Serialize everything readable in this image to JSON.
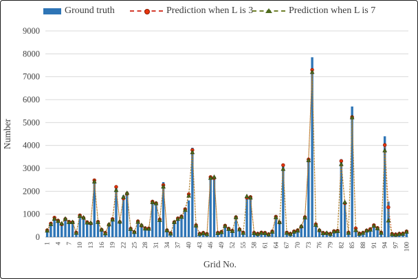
{
  "legend": {
    "items": [
      {
        "label": "Ground truth",
        "swatch": "bar-blue"
      },
      {
        "label": "Prediction when L is 3",
        "swatch": "red-dashed-dot"
      },
      {
        "label": "Prediction when L is 7",
        "swatch": "green-dashed-triangle"
      }
    ]
  },
  "colors": {
    "bar": "#2E75B6",
    "pred_l3_line": "#CE5A28",
    "pred_l3_marker": "#E8350D",
    "pred_l3_marker_edge": "#8B1A00",
    "pred_l7_line": "#A08C28",
    "pred_l7_marker": "#4E6B1E",
    "pred_l7_marker_edge": "#2C3E0A",
    "gridline": "#D9D9D9",
    "axis_line": "#A6A6A6",
    "text": "#3F3F3F"
  },
  "chart_data": {
    "type": "bar",
    "subtype": "bar-with-two-prediction-lines",
    "title": "",
    "xlabel": "Grid No.",
    "ylabel": "Number",
    "ylim": [
      0,
      9000
    ],
    "ytick_step": 1000,
    "y_ticks": [
      0,
      1000,
      2000,
      3000,
      4000,
      5000,
      6000,
      7000,
      8000,
      9000
    ],
    "grid": true,
    "legend_position": "top",
    "n_categories": 100,
    "categories": [
      1,
      2,
      3,
      4,
      5,
      6,
      7,
      8,
      9,
      10,
      11,
      12,
      13,
      14,
      15,
      16,
      17,
      18,
      19,
      20,
      21,
      22,
      23,
      24,
      25,
      26,
      27,
      28,
      29,
      30,
      31,
      32,
      33,
      34,
      35,
      36,
      37,
      38,
      39,
      40,
      41,
      42,
      43,
      44,
      45,
      46,
      47,
      48,
      49,
      50,
      51,
      52,
      53,
      54,
      55,
      56,
      57,
      58,
      59,
      60,
      61,
      62,
      63,
      64,
      65,
      66,
      67,
      68,
      69,
      70,
      71,
      72,
      73,
      74,
      75,
      76,
      77,
      78,
      79,
      80,
      81,
      82,
      83,
      84,
      85,
      86,
      87,
      88,
      89,
      90,
      91,
      92,
      93,
      94,
      95,
      96,
      97,
      98,
      99,
      100
    ],
    "x_tick_labels": [
      1,
      4,
      7,
      10,
      13,
      16,
      19,
      22,
      25,
      28,
      31,
      34,
      37,
      40,
      43,
      46,
      49,
      52,
      55,
      58,
      61,
      64,
      67,
      70,
      73,
      76,
      79,
      82,
      85,
      88,
      91,
      94,
      97,
      100
    ],
    "series": [
      {
        "name": "Ground truth",
        "type": "bar",
        "color": "#2E75B6",
        "values": [
          250,
          520,
          750,
          670,
          520,
          750,
          620,
          620,
          150,
          870,
          790,
          590,
          550,
          2450,
          620,
          270,
          120,
          490,
          720,
          2120,
          620,
          1820,
          1970,
          320,
          170,
          620,
          450,
          350,
          330,
          1500,
          1450,
          700,
          2400,
          250,
          120,
          600,
          750,
          850,
          1100,
          1600,
          3900,
          550,
          100,
          180,
          100,
          2600,
          2600,
          150,
          200,
          480,
          350,
          250,
          850,
          300,
          150,
          1750,
          1730,
          150,
          100,
          170,
          150,
          90,
          200,
          850,
          600,
          3100,
          150,
          100,
          200,
          250,
          430,
          850,
          3450,
          7850,
          500,
          250,
          150,
          120,
          150,
          220,
          250,
          3400,
          1500,
          150,
          5700,
          350,
          120,
          150,
          250,
          320,
          500,
          370,
          150,
          4400,
          1550,
          100,
          80,
          100,
          120,
          220
        ]
      },
      {
        "name": "Prediction when L is 3",
        "type": "line",
        "marker": "circle",
        "color": "#CE5A28",
        "values": [
          300,
          590,
          850,
          720,
          560,
          790,
          670,
          650,
          200,
          950,
          840,
          650,
          600,
          2480,
          670,
          320,
          190,
          540,
          790,
          2190,
          660,
          1690,
          1900,
          370,
          220,
          690,
          500,
          390,
          380,
          1550,
          1480,
          770,
          2270,
          300,
          170,
          650,
          820,
          900,
          1220,
          1870,
          3800,
          520,
          150,
          190,
          140,
          2620,
          2580,
          190,
          230,
          500,
          370,
          280,
          870,
          340,
          200,
          1720,
          1750,
          190,
          150,
          200,
          190,
          130,
          250,
          890,
          640,
          3140,
          200,
          150,
          250,
          300,
          460,
          870,
          3390,
          7300,
          560,
          290,
          190,
          170,
          150,
          260,
          280,
          3320,
          1480,
          200,
          5240,
          380,
          160,
          190,
          290,
          350,
          520,
          400,
          200,
          4020,
          1300,
          140,
          120,
          150,
          160,
          250
        ]
      },
      {
        "name": "Prediction when L is 7",
        "type": "line",
        "marker": "triangle",
        "color": "#A08C28",
        "values": [
          280,
          560,
          800,
          700,
          590,
          800,
          650,
          650,
          180,
          920,
          850,
          630,
          620,
          2420,
          650,
          320,
          160,
          550,
          760,
          2050,
          670,
          1750,
          1920,
          350,
          220,
          660,
          520,
          370,
          360,
          1520,
          1470,
          740,
          2200,
          290,
          150,
          650,
          790,
          880,
          1180,
          1800,
          3700,
          500,
          130,
          170,
          120,
          2580,
          2620,
          170,
          210,
          480,
          350,
          260,
          860,
          330,
          180,
          1780,
          1720,
          170,
          130,
          180,
          170,
          110,
          230,
          860,
          650,
          2970,
          180,
          130,
          230,
          280,
          470,
          850,
          3350,
          7200,
          530,
          300,
          170,
          180,
          130,
          240,
          260,
          3180,
          1520,
          180,
          5220,
          300,
          140,
          180,
          280,
          320,
          490,
          380,
          180,
          3780,
          720,
          120,
          100,
          130,
          140,
          230
        ]
      }
    ]
  }
}
